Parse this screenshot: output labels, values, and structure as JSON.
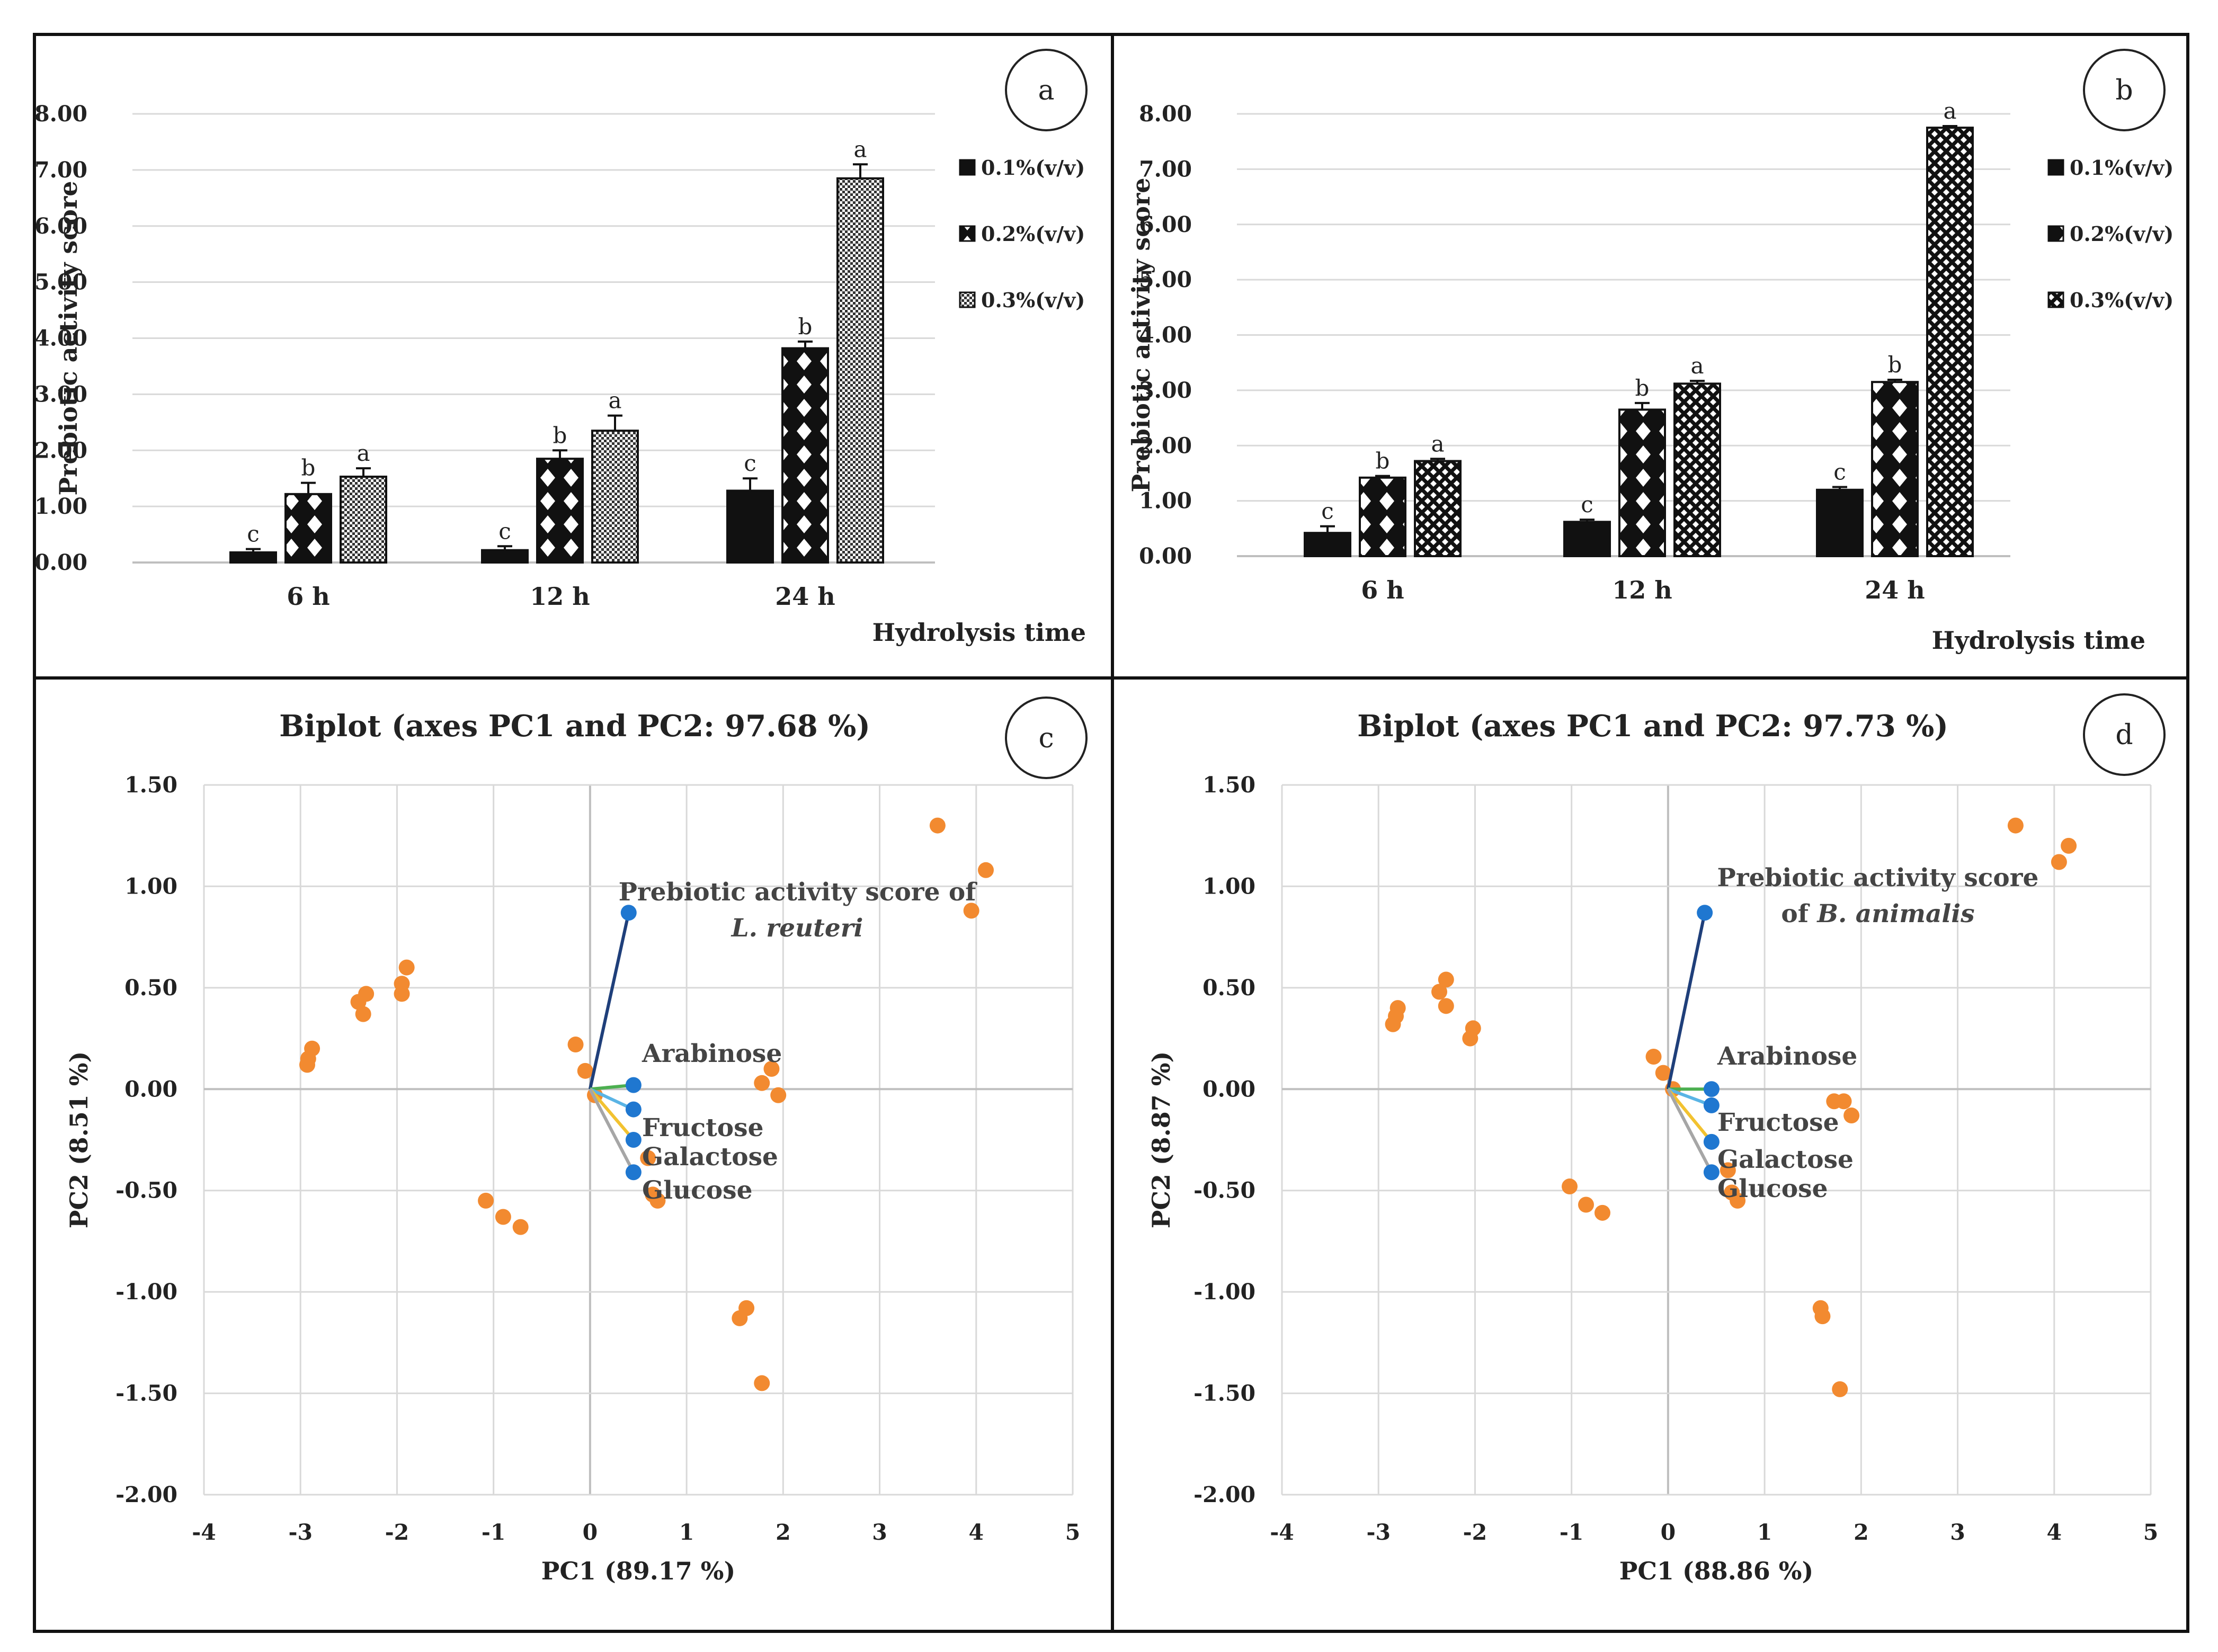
{
  "colors": {
    "orange": "#F28A30",
    "blue": "#1F77D0",
    "navy": "#1F3F7A",
    "green": "#4CAF50",
    "lightblue": "#5AB4E5",
    "yellow": "#F2C230",
    "gray": "#A6A6A6",
    "black": "#111111"
  },
  "chart_data": [
    {
      "panel": "a",
      "type": "bar",
      "ylabel": "Prebiotic activity score",
      "xlabel": "Hydrolysis time",
      "ylim": [
        0,
        8
      ],
      "yticks": [
        "0.00",
        "1.00",
        "2.00",
        "3.00",
        "4.00",
        "5.00",
        "6.00",
        "7.00",
        "8.00"
      ],
      "categories": [
        "6 h",
        "12 h",
        "24 h"
      ],
      "series": [
        {
          "name": "0.1%(v/v)",
          "pattern": "solid",
          "values": [
            0.18,
            0.22,
            1.28
          ],
          "errors": [
            0.06,
            0.07,
            0.22
          ],
          "letters": [
            "c",
            "c",
            "c"
          ]
        },
        {
          "name": "0.2%(v/v)",
          "pattern": "diamond",
          "values": [
            1.22,
            1.85,
            3.82
          ],
          "errors": [
            0.2,
            0.15,
            0.12
          ],
          "letters": [
            "b",
            "b",
            "b"
          ]
        },
        {
          "name": "0.3%(v/v)",
          "pattern": "dots",
          "values": [
            1.53,
            2.35,
            6.85
          ],
          "errors": [
            0.15,
            0.27,
            0.25
          ],
          "letters": [
            "a",
            "a",
            "a"
          ]
        }
      ]
    },
    {
      "panel": "b",
      "type": "bar",
      "ylabel": "Prebiotic activity score",
      "xlabel": "Hydrolysis time",
      "ylim": [
        0,
        8
      ],
      "yticks": [
        "0.00",
        "1.00",
        "2.00",
        "3.00",
        "4.00",
        "5.00",
        "6.00",
        "7.00",
        "8.00"
      ],
      "categories": [
        "6 h",
        "12 h",
        "24 h"
      ],
      "series": [
        {
          "name": "0.1%(v/v)",
          "pattern": "solid",
          "values": [
            0.42,
            0.62,
            1.2
          ],
          "errors": [
            0.12,
            0.04,
            0.05
          ],
          "letters": [
            "c",
            "c",
            "c"
          ]
        },
        {
          "name": "0.2%(v/v)",
          "pattern": "diamond",
          "values": [
            1.42,
            2.65,
            3.15
          ],
          "errors": [
            0.03,
            0.12,
            0.04
          ],
          "letters": [
            "b",
            "b",
            "b"
          ]
        },
        {
          "name": "0.3%(v/v)",
          "pattern": "cross",
          "values": [
            1.72,
            3.12,
            7.75
          ],
          "errors": [
            0.04,
            0.05,
            0.03
          ],
          "letters": [
            "a",
            "a",
            "a"
          ]
        }
      ]
    },
    {
      "panel": "c",
      "type": "scatter",
      "title": "Biplot (axes PC1 and PC2: 97.68 %)",
      "xlabel": "PC1 (89.17 %)",
      "ylabel": "PC2 (8.51 %)",
      "xlim": [
        -4,
        5
      ],
      "ylim": [
        -2,
        1.5
      ],
      "xticks": [
        "-4",
        "-3",
        "-2",
        "-1",
        "0",
        "1",
        "2",
        "3",
        "4",
        "5"
      ],
      "yticks": [
        "-2.00",
        "-1.50",
        "-1.00",
        "-0.50",
        "0.00",
        "0.50",
        "1.00",
        "1.50"
      ],
      "observations": [
        [
          3.6,
          1.3
        ],
        [
          4.1,
          1.08
        ],
        [
          3.95,
          0.88
        ],
        [
          -1.9,
          0.6
        ],
        [
          -1.95,
          0.52
        ],
        [
          -1.95,
          0.47
        ],
        [
          -2.32,
          0.47
        ],
        [
          -2.4,
          0.43
        ],
        [
          -2.35,
          0.37
        ],
        [
          -2.88,
          0.2
        ],
        [
          -2.92,
          0.15
        ],
        [
          -2.93,
          0.12
        ],
        [
          -0.15,
          0.22
        ],
        [
          -0.05,
          0.09
        ],
        [
          0.05,
          -0.03
        ],
        [
          1.88,
          0.1
        ],
        [
          1.78,
          0.03
        ],
        [
          1.95,
          -0.03
        ],
        [
          0.6,
          -0.34
        ],
        [
          0.65,
          -0.52
        ],
        [
          0.7,
          -0.55
        ],
        [
          -1.08,
          -0.55
        ],
        [
          -0.9,
          -0.63
        ],
        [
          -0.72,
          -0.68
        ],
        [
          1.62,
          -1.08
        ],
        [
          1.55,
          -1.13
        ],
        [
          1.78,
          -1.45
        ]
      ],
      "variables": [
        {
          "name": "Prebiotic activity score of",
          "species": "L. reuteri",
          "x": 0.4,
          "y": 0.87,
          "color": "navy"
        },
        {
          "name": "Arabinose",
          "x": 0.45,
          "y": 0.02,
          "color": "green"
        },
        {
          "name": "Fructose",
          "x": 0.45,
          "y": -0.1,
          "color": "lightblue"
        },
        {
          "name": "Galactose",
          "x": 0.45,
          "y": -0.25,
          "color": "yellow"
        },
        {
          "name": "Glucose",
          "x": 0.45,
          "y": -0.41,
          "color": "gray"
        }
      ]
    },
    {
      "panel": "d",
      "type": "scatter",
      "title": "Biplot (axes PC1 and PC2: 97.73 %)",
      "xlabel": "PC1 (88.86 %)",
      "ylabel": "PC2 (8.87 %)",
      "xlim": [
        -4,
        5
      ],
      "ylim": [
        -2,
        1.5
      ],
      "xticks": [
        "-4",
        "-3",
        "-2",
        "-1",
        "0",
        "1",
        "2",
        "3",
        "4",
        "5"
      ],
      "yticks": [
        "-2.00",
        "-1.50",
        "-1.00",
        "-0.50",
        "0.00",
        "0.50",
        "1.00",
        "1.50"
      ],
      "observations": [
        [
          3.6,
          1.3
        ],
        [
          4.15,
          1.2
        ],
        [
          4.05,
          1.12
        ],
        [
          -2.3,
          0.54
        ],
        [
          -2.37,
          0.48
        ],
        [
          -2.3,
          0.41
        ],
        [
          -2.02,
          0.3
        ],
        [
          -2.05,
          0.25
        ],
        [
          -2.8,
          0.4
        ],
        [
          -2.82,
          0.36
        ],
        [
          -2.85,
          0.32
        ],
        [
          -0.15,
          0.16
        ],
        [
          -0.05,
          0.08
        ],
        [
          0.05,
          0.0
        ],
        [
          1.72,
          -0.06
        ],
        [
          1.82,
          -0.06
        ],
        [
          1.9,
          -0.13
        ],
        [
          0.62,
          -0.4
        ],
        [
          0.66,
          -0.51
        ],
        [
          0.72,
          -0.55
        ],
        [
          -1.02,
          -0.48
        ],
        [
          -0.85,
          -0.57
        ],
        [
          -0.68,
          -0.61
        ],
        [
          1.58,
          -1.08
        ],
        [
          1.6,
          -1.12
        ],
        [
          1.78,
          -1.48
        ]
      ],
      "variables": [
        {
          "name": "Prebiotic activity score",
          "species_prefix": "of",
          "species": "B. animalis",
          "x": 0.38,
          "y": 0.87,
          "color": "navy"
        },
        {
          "name": "Arabinose",
          "x": 0.45,
          "y": 0.0,
          "color": "green"
        },
        {
          "name": "Fructose",
          "x": 0.45,
          "y": -0.08,
          "color": "lightblue"
        },
        {
          "name": "Galactose",
          "x": 0.45,
          "y": -0.26,
          "color": "yellow"
        },
        {
          "name": "Glucose",
          "x": 0.45,
          "y": -0.41,
          "color": "gray"
        }
      ]
    }
  ]
}
